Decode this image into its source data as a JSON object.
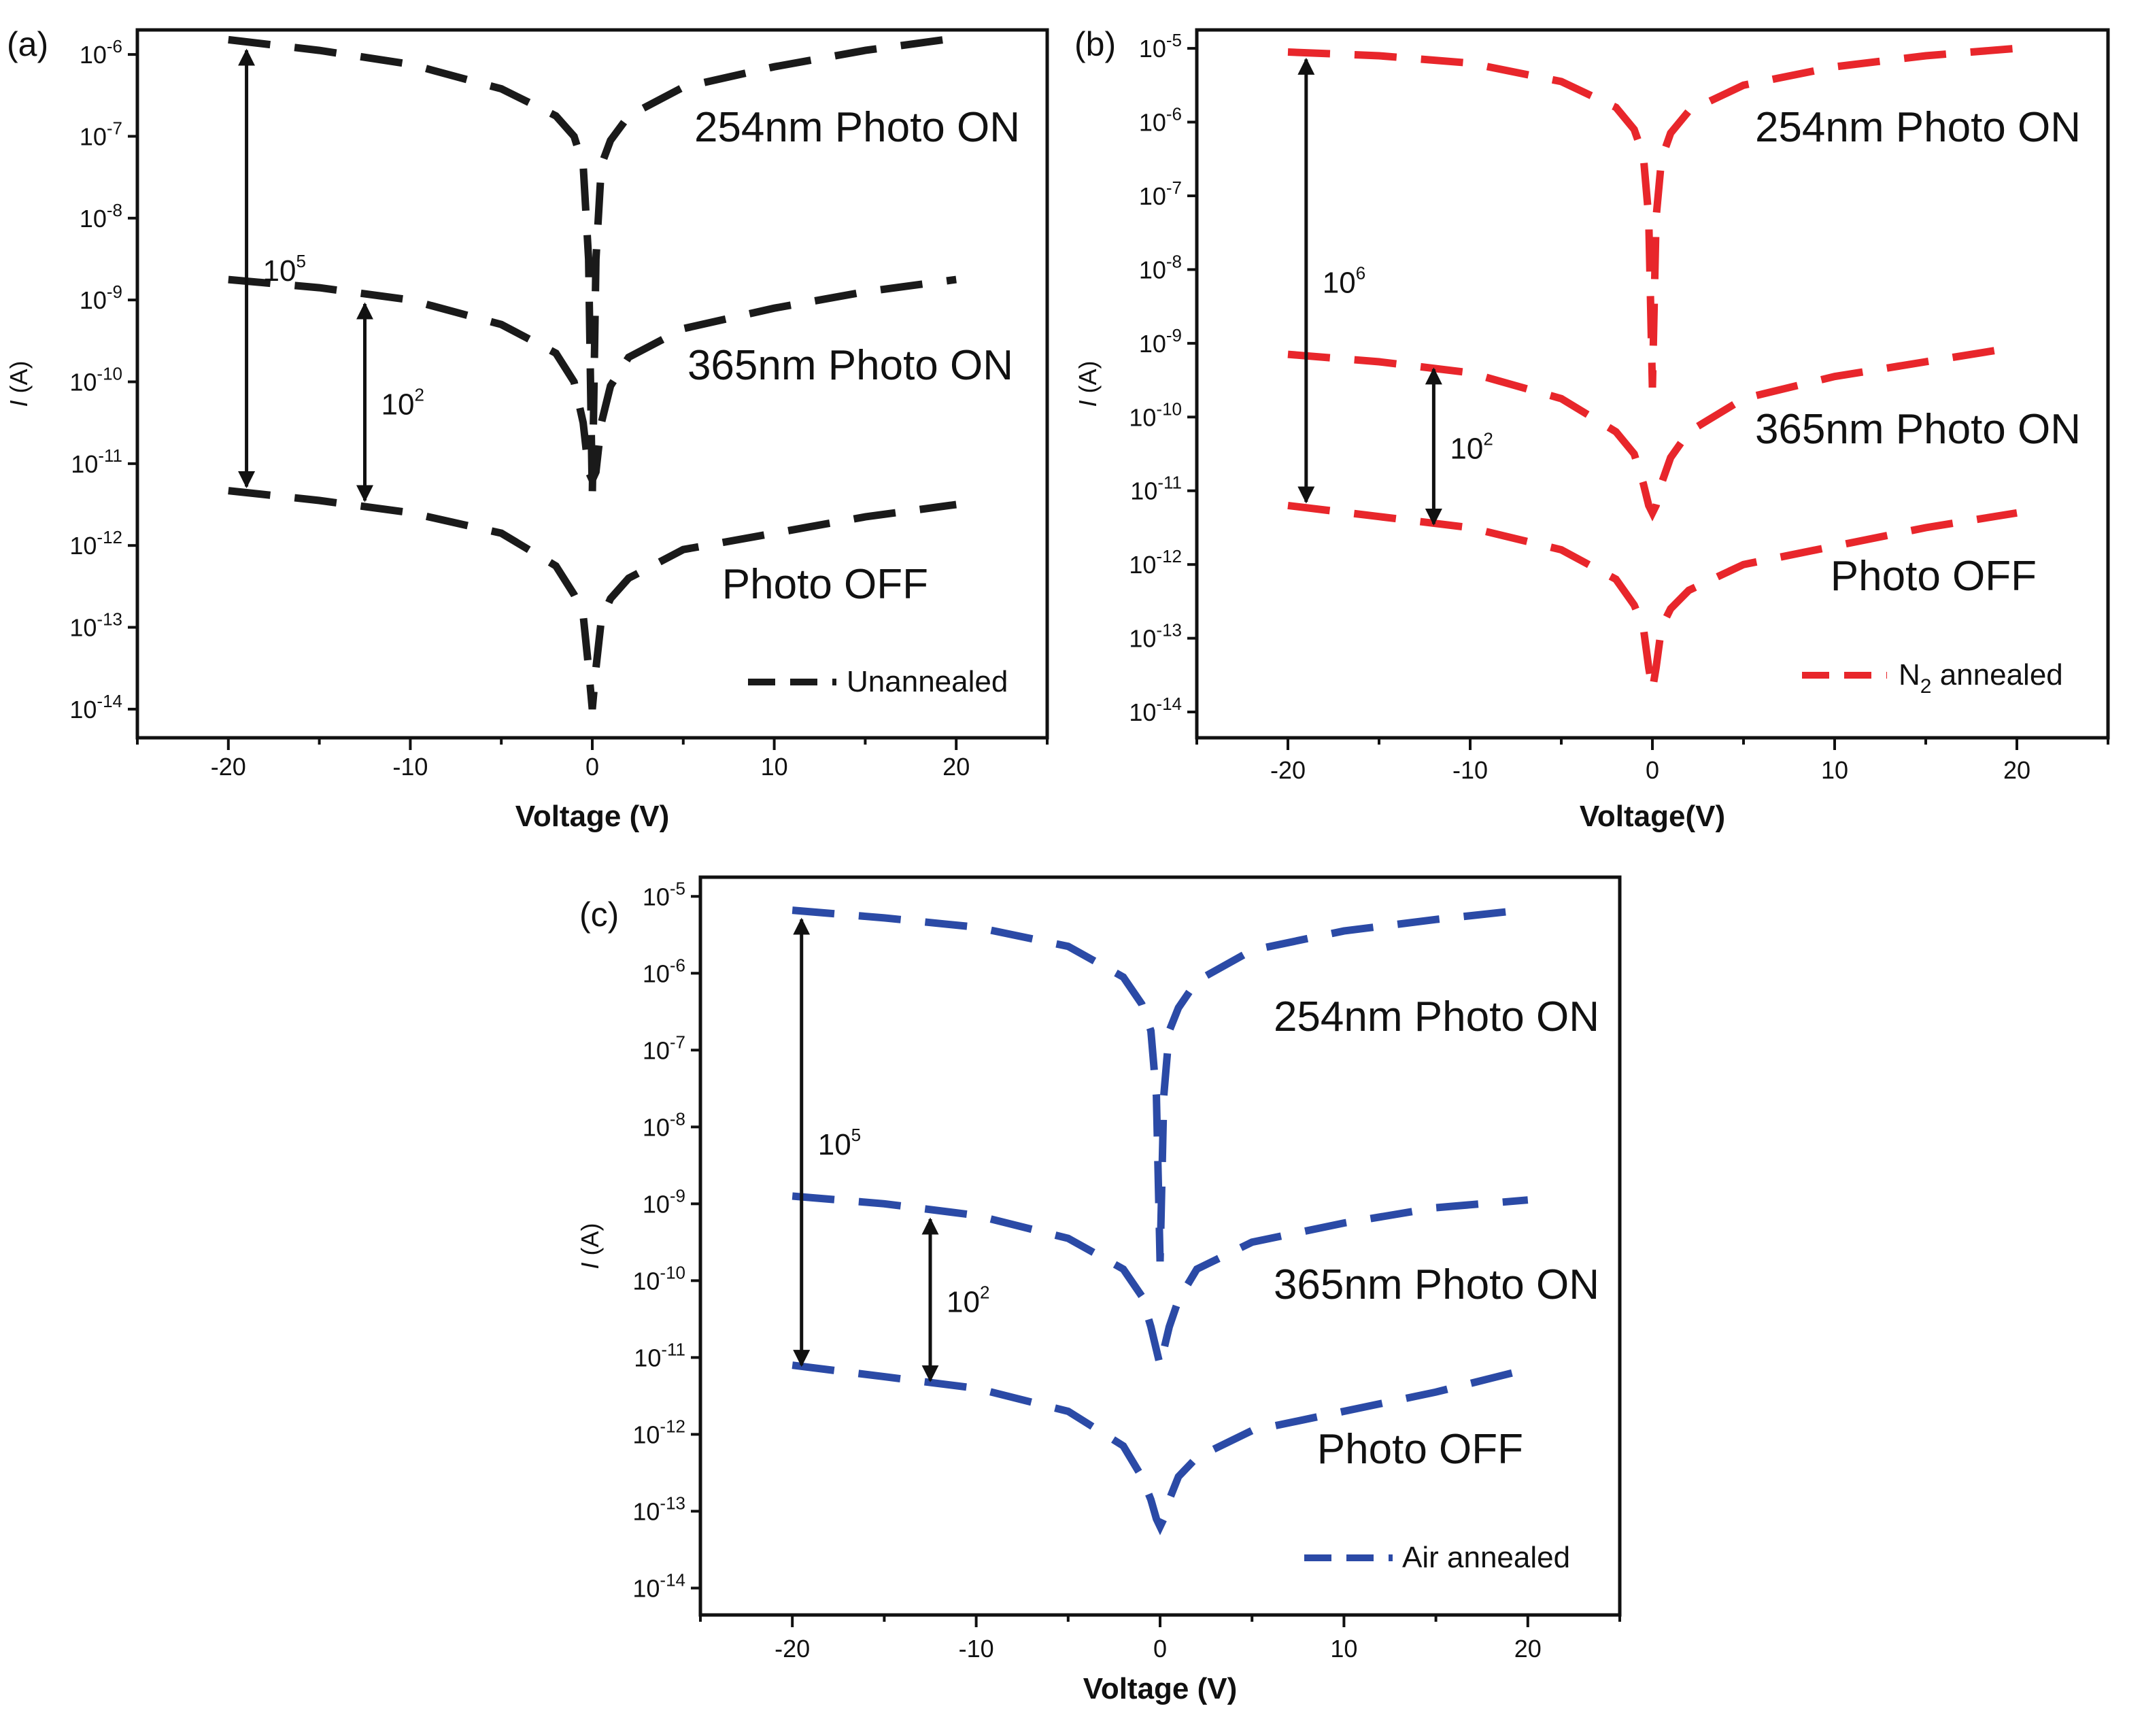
{
  "chart_data": [
    {
      "type": "line",
      "panel_label": "(a)",
      "xlabel": "Voltage (V)",
      "ylabel_italic": "I",
      "ylabel_rest": " (A)",
      "xlim": [
        -25,
        25
      ],
      "ylim_log10": [
        -14.35,
        -5.7
      ],
      "x_ticks": [
        "-20",
        "-10",
        "0",
        "10",
        "20"
      ],
      "y_exponents": [
        -14,
        -13,
        -12,
        -11,
        -10,
        -9,
        -8,
        -7,
        -6
      ],
      "color": "#1a1a1a",
      "series": [
        {
          "name": "254nm Photo ON",
          "x": [
            -20,
            -15,
            -10,
            -5,
            -2,
            -1,
            -0.5,
            -0.2,
            0,
            0.2,
            0.5,
            1,
            2,
            5,
            10,
            15,
            20
          ],
          "log10_I": [
            -5.82,
            -5.95,
            -6.12,
            -6.42,
            -6.75,
            -7.0,
            -7.35,
            -8.5,
            -11.4,
            -8.5,
            -7.35,
            -7.05,
            -6.75,
            -6.4,
            -6.15,
            -5.95,
            -5.8
          ]
        },
        {
          "name": "365nm Photo ON",
          "x": [
            -20,
            -15,
            -10,
            -5,
            -2,
            -1,
            -0.5,
            -0.2,
            0,
            0.2,
            0.5,
            1,
            2,
            5,
            10,
            15,
            20
          ],
          "log10_I": [
            -8.75,
            -8.85,
            -9.0,
            -9.3,
            -9.65,
            -10.0,
            -10.5,
            -11.1,
            -11.2,
            -11.1,
            -10.5,
            -10.05,
            -9.7,
            -9.35,
            -9.1,
            -8.9,
            -8.75
          ]
        },
        {
          "name": "Photo OFF",
          "x": [
            -20,
            -15,
            -10,
            -5,
            -2,
            -1,
            -0.5,
            -0.2,
            0,
            0.2,
            0.5,
            1,
            2,
            5,
            10,
            15,
            20
          ],
          "log10_I": [
            -11.33,
            -11.45,
            -11.6,
            -11.85,
            -12.25,
            -12.6,
            -12.85,
            -13.5,
            -14.0,
            -13.5,
            -12.9,
            -12.65,
            -12.4,
            -12.05,
            -11.85,
            -11.65,
            -11.5
          ]
        }
      ],
      "curve_labels": [
        "254nm Photo ON",
        "365nm Photo ON",
        "Photo OFF"
      ],
      "ratios": [
        {
          "base": "10",
          "exp": "5",
          "x": -19,
          "from_log": -5.95,
          "to_log": -11.28
        },
        {
          "base": "10",
          "exp": "2",
          "x": -12.5,
          "from_log": -9.05,
          "to_log": -11.45
        }
      ],
      "legend": {
        "prefix": "Unannealed",
        "sub": "",
        "suffix": "",
        "placement": "bottom-right"
      }
    },
    {
      "type": "line",
      "panel_label": "(b)",
      "xlabel": "Voltage(V)",
      "ylabel_italic": "I",
      "ylabel_rest": " (A)",
      "xlim": [
        -25,
        25
      ],
      "ylim_log10": [
        -14.35,
        -4.75
      ],
      "x_ticks": [
        "-20",
        "-10",
        "0",
        "10",
        "20"
      ],
      "y_exponents": [
        -14,
        -13,
        -12,
        -11,
        -10,
        -9,
        -8,
        -7,
        -6,
        -5
      ],
      "color": "#e8262b",
      "series": [
        {
          "name": "254nm Photo ON",
          "x": [
            -20,
            -15,
            -10,
            -5,
            -2,
            -1,
            -0.5,
            -0.2,
            0,
            0.2,
            0.5,
            1,
            2,
            5,
            10,
            15,
            20
          ],
          "log10_I": [
            -5.05,
            -5.1,
            -5.2,
            -5.45,
            -5.8,
            -6.1,
            -6.45,
            -7.3,
            -9.6,
            -7.3,
            -6.5,
            -6.15,
            -5.85,
            -5.5,
            -5.25,
            -5.1,
            -5.0
          ]
        },
        {
          "name": "365nm Photo ON",
          "x": [
            -20,
            -15,
            -10,
            -5,
            -2,
            -1,
            -0.5,
            -0.2,
            0,
            0.2,
            0.5,
            1,
            2,
            5,
            10,
            15,
            20
          ],
          "log10_I": [
            -9.15,
            -9.25,
            -9.4,
            -9.75,
            -10.2,
            -10.5,
            -10.9,
            -11.2,
            -11.3,
            -11.2,
            -10.9,
            -10.55,
            -10.2,
            -9.75,
            -9.45,
            -9.25,
            -9.05
          ]
        },
        {
          "name": "Photo OFF",
          "x": [
            -20,
            -15,
            -10,
            -5,
            -2,
            -1,
            -0.5,
            -0.2,
            0,
            0.2,
            0.5,
            1,
            2,
            5,
            10,
            15,
            20
          ],
          "log10_I": [
            -11.2,
            -11.35,
            -11.5,
            -11.8,
            -12.2,
            -12.55,
            -12.85,
            -13.4,
            -13.7,
            -13.4,
            -12.85,
            -12.6,
            -12.35,
            -12.0,
            -11.75,
            -11.5,
            -11.3
          ]
        }
      ],
      "curve_labels": [
        "254nm Photo ON",
        "365nm Photo ON",
        "Photo OFF"
      ],
      "ratios": [
        {
          "base": "10",
          "exp": "6",
          "x": -19,
          "from_log": -5.15,
          "to_log": -11.15
        },
        {
          "base": "10",
          "exp": "2",
          "x": -12,
          "from_log": -9.35,
          "to_log": -11.45
        }
      ],
      "legend": {
        "prefix": "N",
        "sub": "2",
        "suffix": " annealed",
        "placement": "bottom-right"
      }
    },
    {
      "type": "line",
      "panel_label": "(c)",
      "xlabel": "Voltage (V)",
      "ylabel_italic": "I",
      "ylabel_rest": " (A)",
      "xlim": [
        -25,
        25
      ],
      "ylim_log10": [
        -14.35,
        -4.75
      ],
      "x_ticks": [
        "-20",
        "-10",
        "0",
        "10",
        "20"
      ],
      "y_exponents": [
        -14,
        -13,
        -12,
        -11,
        -10,
        -9,
        -8,
        -7,
        -6,
        -5
      ],
      "color": "#2b4aa6",
      "series": [
        {
          "name": "254nm Photo ON",
          "x": [
            -20,
            -15,
            -10,
            -5,
            -2,
            -1,
            -0.5,
            -0.2,
            0,
            0.2,
            0.5,
            1,
            2,
            5,
            10,
            15,
            20
          ],
          "log10_I": [
            -5.18,
            -5.28,
            -5.4,
            -5.65,
            -6.05,
            -6.4,
            -6.75,
            -7.6,
            -9.75,
            -7.6,
            -6.75,
            -6.45,
            -6.1,
            -5.7,
            -5.45,
            -5.3,
            -5.17
          ]
        },
        {
          "name": "365nm Photo ON",
          "x": [
            -20,
            -15,
            -10,
            -5,
            -2,
            -1,
            -0.5,
            -0.2,
            0,
            0.2,
            0.5,
            1,
            2,
            5,
            10,
            15,
            20
          ],
          "log10_I": [
            -8.9,
            -9.0,
            -9.15,
            -9.45,
            -9.85,
            -10.2,
            -10.6,
            -10.9,
            -11.1,
            -10.9,
            -10.6,
            -10.25,
            -9.85,
            -9.5,
            -9.25,
            -9.05,
            -8.95
          ]
        },
        {
          "name": "Photo OFF",
          "x": [
            -20,
            -15,
            -10,
            -5,
            -2,
            -1,
            -0.5,
            -0.2,
            0,
            0.2,
            0.5,
            1,
            2,
            5,
            10,
            15,
            20
          ],
          "log10_I": [
            -11.1,
            -11.25,
            -11.4,
            -11.7,
            -12.15,
            -12.55,
            -12.85,
            -13.1,
            -13.2,
            -13.1,
            -12.85,
            -12.55,
            -12.3,
            -11.95,
            -11.7,
            -11.45,
            -11.15
          ]
        }
      ],
      "curve_labels": [
        "254nm Photo ON",
        "365nm Photo ON",
        "Photo OFF"
      ],
      "ratios": [
        {
          "base": "10",
          "exp": "5",
          "x": -19.5,
          "from_log": -5.3,
          "to_log": -11.1
        },
        {
          "base": "10",
          "exp": "2",
          "x": -12.5,
          "from_log": -9.2,
          "to_log": -11.3
        }
      ],
      "legend": {
        "prefix": "Air annealed",
        "sub": "",
        "suffix": "",
        "placement": "bottom-right"
      }
    }
  ]
}
